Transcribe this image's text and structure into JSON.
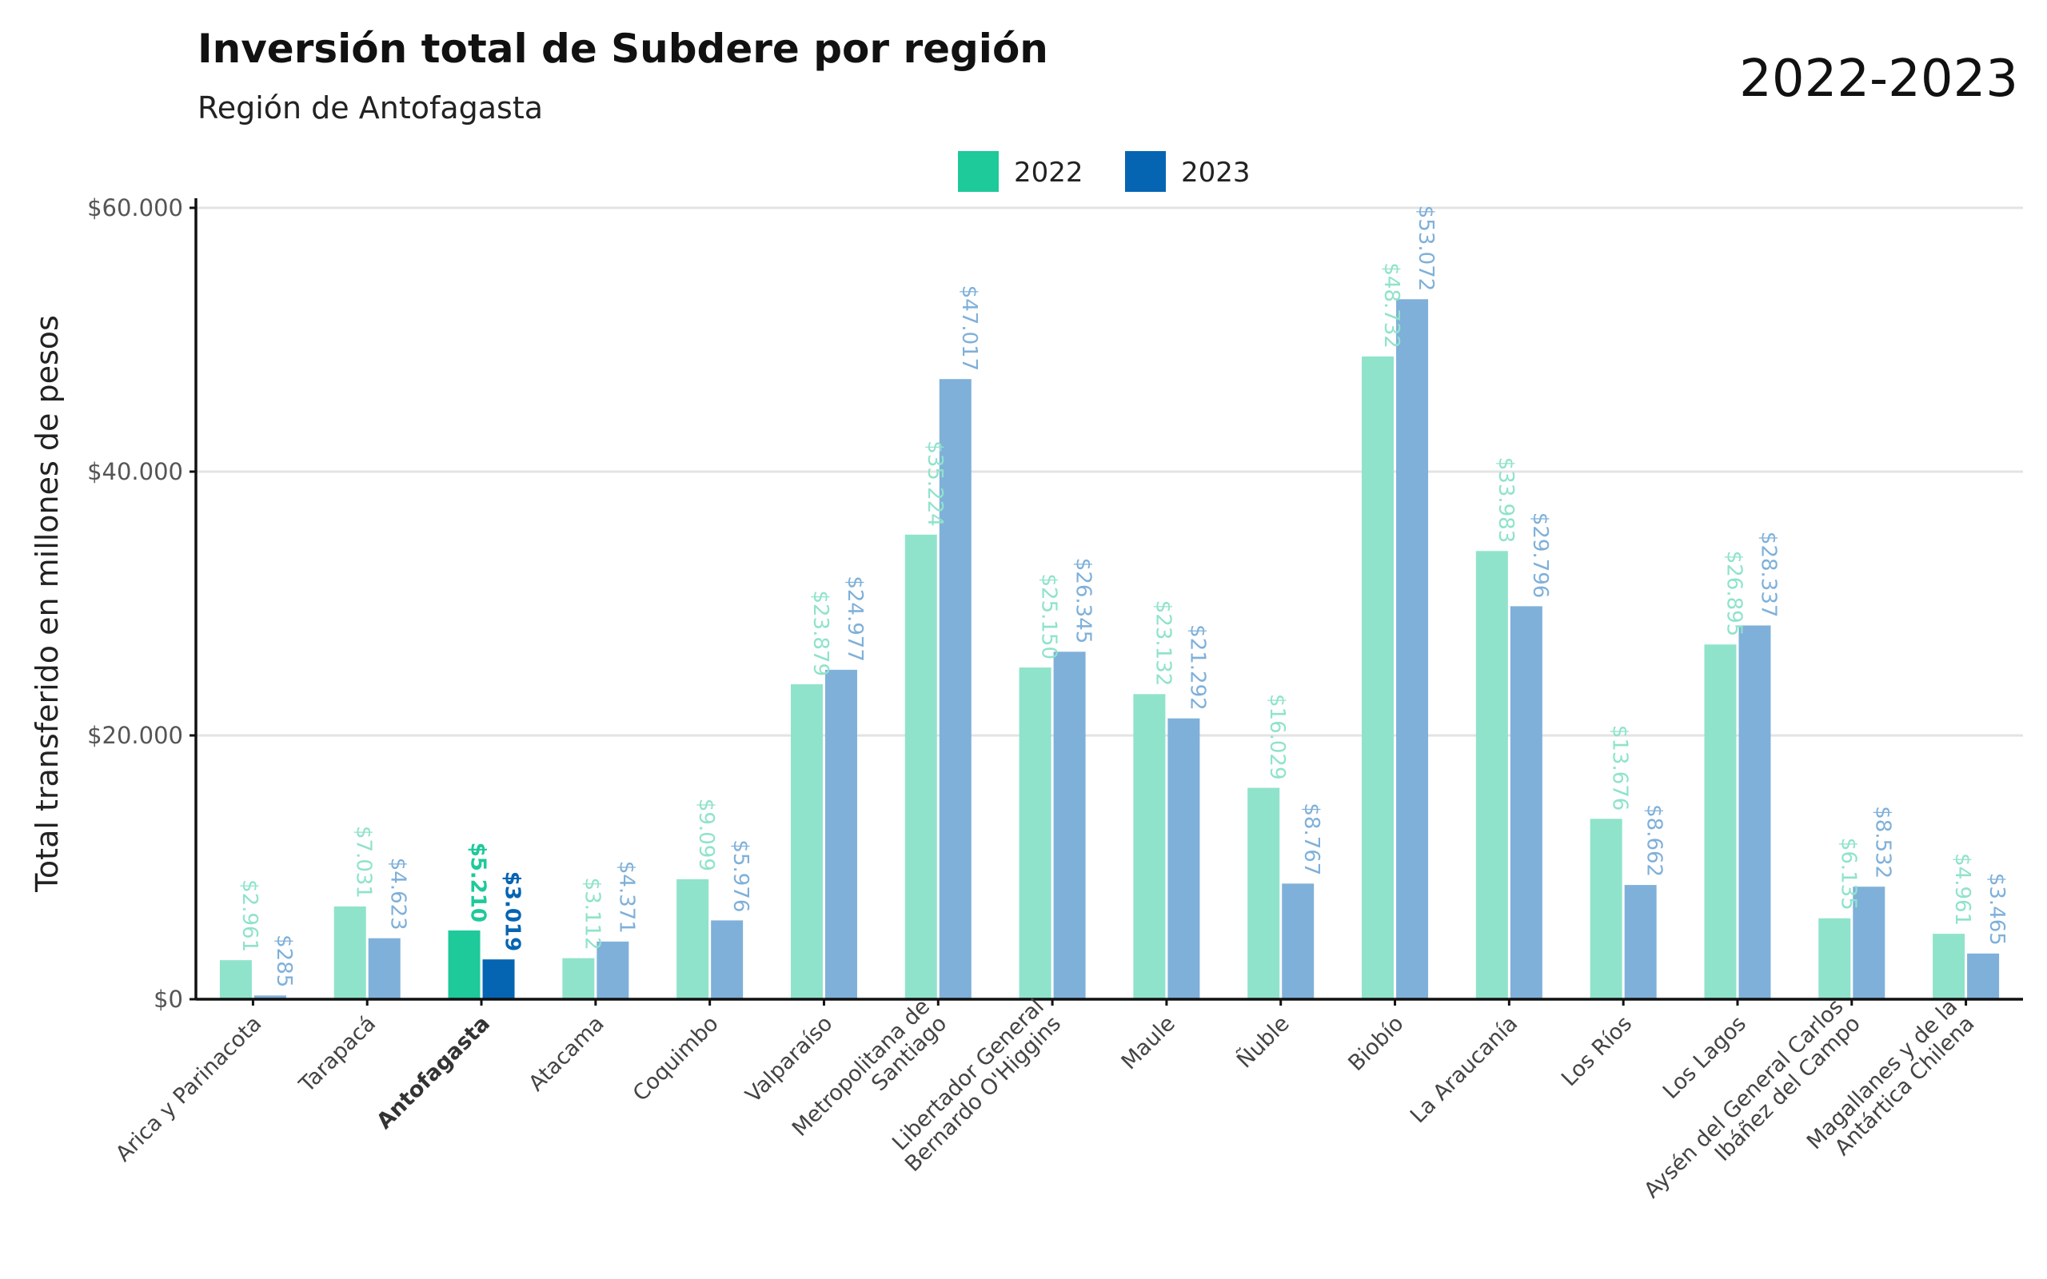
{
  "header": {
    "title": "Inversión total de Subdere por región",
    "subtitle": "Región de Antofagasta",
    "period": "2022-2023"
  },
  "colors": {
    "2022": "#1ec99a",
    "2023": "#0565b2",
    "highlight_region": "Antofagasta"
  },
  "chart_data": {
    "type": "bar",
    "title": "Inversión total de Subdere por región",
    "subtitle": "Región de Antofagasta",
    "ylabel": "Total transferido en millones de pesos",
    "xlabel": "",
    "ylim": [
      0,
      60000
    ],
    "yticks": [
      0,
      20000,
      40000,
      60000
    ],
    "ytick_labels": [
      "$0",
      "$20.000",
      "$40.000",
      "$60.000"
    ],
    "grid": true,
    "legend_position": "top-center",
    "categories": [
      [
        "Arica y Parinacota"
      ],
      [
        "Tarapacá"
      ],
      [
        "Antofagasta"
      ],
      [
        "Atacama"
      ],
      [
        "Coquimbo"
      ],
      [
        "Valparaíso"
      ],
      [
        "Metropolitana de",
        "Santiago"
      ],
      [
        "Libertador General",
        "Bernardo O'Higgins"
      ],
      [
        "Maule"
      ],
      [
        "Ñuble"
      ],
      [
        "Biobío"
      ],
      [
        "La Araucanía"
      ],
      [
        "Los Ríos"
      ],
      [
        "Los Lagos"
      ],
      [
        "Aysén del General Carlos",
        "Ibáñez del Campo"
      ],
      [
        "Magallanes y de la",
        "Antártica Chilena"
      ]
    ],
    "highlight_index": 2,
    "series": [
      {
        "name": "2022",
        "values": [
          2961,
          7031,
          5210,
          3112,
          9099,
          23879,
          35224,
          25150,
          23132,
          16029,
          48732,
          33983,
          13676,
          26895,
          6135,
          4961
        ],
        "labels": [
          "$2.961",
          "$7.031",
          "$5.210",
          "$3.112",
          "$9.099",
          "$23.879",
          "$35.224",
          "$25.150",
          "$23.132",
          "$16.029",
          "$48.732",
          "$33.983",
          "$13.676",
          "$26.895",
          "$6.135",
          "$4.961"
        ]
      },
      {
        "name": "2023",
        "values": [
          285,
          4623,
          3019,
          4371,
          5976,
          24977,
          47017,
          26345,
          21292,
          8767,
          53072,
          29796,
          8662,
          28337,
          8532,
          3465
        ],
        "labels": [
          "$285",
          "$4.623",
          "$3.019",
          "$4.371",
          "$5.976",
          "$24.977",
          "$47.017",
          "$26.345",
          "$21.292",
          "$8.767",
          "$53.072",
          "$29.796",
          "$8.662",
          "$28.337",
          "$8.532",
          "$3.465"
        ]
      }
    ]
  }
}
